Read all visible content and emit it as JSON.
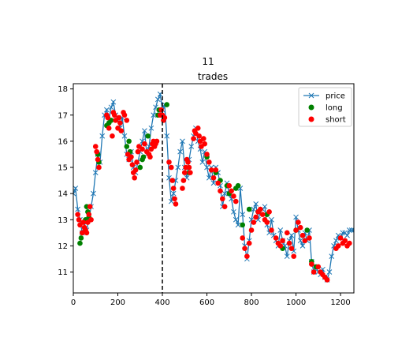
{
  "chart_data": {
    "type": "line",
    "suptitle": "11",
    "title": "trades",
    "xlabel": "",
    "ylabel": "",
    "xlim": [
      0,
      1260
    ],
    "ylim": [
      10.2,
      18.2
    ],
    "xticks": [
      0,
      200,
      400,
      600,
      800,
      1000,
      1200
    ],
    "yticks": [
      11,
      12,
      13,
      14,
      15,
      16,
      17,
      18
    ],
    "grid": false,
    "legend_position": "top-right",
    "vline": {
      "x": 400,
      "style": "dashed",
      "color": "#000000"
    },
    "colors": {
      "price": "#1f77b4",
      "long": "#008000",
      "short": "#ff0000"
    },
    "series": [
      {
        "name": "price",
        "marker": "x",
        "x": [
          0,
          10,
          20,
          30,
          40,
          50,
          60,
          70,
          80,
          90,
          100,
          110,
          120,
          130,
          140,
          150,
          160,
          170,
          180,
          190,
          200,
          210,
          220,
          230,
          240,
          250,
          260,
          270,
          280,
          290,
          300,
          310,
          320,
          330,
          340,
          350,
          360,
          370,
          380,
          390,
          400,
          410,
          420,
          430,
          440,
          450,
          460,
          470,
          480,
          490,
          500,
          510,
          520,
          530,
          540,
          550,
          560,
          570,
          580,
          590,
          600,
          610,
          620,
          630,
          640,
          650,
          660,
          670,
          680,
          690,
          700,
          710,
          720,
          730,
          740,
          750,
          760,
          770,
          780,
          790,
          800,
          810,
          820,
          830,
          840,
          850,
          860,
          870,
          880,
          890,
          900,
          910,
          920,
          930,
          940,
          950,
          960,
          970,
          980,
          990,
          1000,
          1010,
          1020,
          1030,
          1040,
          1050,
          1060,
          1070,
          1080,
          1090,
          1100,
          1110,
          1120,
          1130,
          1140,
          1150,
          1160,
          1170,
          1180,
          1190,
          1200,
          1210,
          1220,
          1230,
          1240,
          1250,
          1260
        ],
        "y": [
          14.0,
          14.2,
          13.4,
          13.0,
          12.5,
          12.8,
          12.6,
          13.0,
          13.5,
          14.0,
          14.8,
          15.5,
          15.2,
          16.2,
          17.0,
          17.2,
          16.8,
          17.3,
          17.5,
          17.0,
          16.8,
          16.5,
          16.9,
          16.2,
          15.5,
          15.3,
          15.6,
          15.0,
          14.8,
          15.2,
          15.6,
          16.0,
          16.4,
          15.5,
          15.8,
          16.5,
          17.0,
          17.3,
          17.6,
          17.8,
          17.2,
          17.4,
          16.2,
          14.6,
          13.7,
          14.0,
          14.5,
          15.0,
          15.6,
          16.0,
          15.0,
          14.6,
          15.3,
          15.8,
          16.2,
          16.5,
          16.0,
          15.7,
          15.2,
          15.6,
          15.0,
          14.6,
          15.0,
          14.4,
          15.0,
          14.8,
          14.3,
          13.5,
          14.0,
          14.4,
          14.0,
          13.8,
          13.3,
          13.0,
          12.8,
          14.2,
          13.2,
          12.0,
          11.5,
          12.2,
          13.0,
          13.4,
          13.6,
          13.0,
          13.3,
          13.4,
          13.5,
          12.8,
          12.5,
          13.0,
          12.4,
          12.2,
          12.0,
          12.6,
          12.2,
          12.0,
          11.6,
          12.2,
          12.4,
          11.8,
          13.1,
          12.6,
          12.2,
          12.0,
          12.5,
          12.2,
          12.6,
          11.4,
          11.0,
          11.2,
          11.0,
          10.9,
          11.1,
          10.8,
          10.7,
          11.0,
          11.6,
          12.0,
          12.2,
          12.4,
          12.3,
          12.5,
          12.5,
          12.4,
          12.6,
          12.6,
          12.6
        ]
      },
      {
        "name": "long",
        "marker": "o",
        "x": [
          30,
          35,
          40,
          55,
          60,
          65,
          70,
          110,
          115,
          150,
          160,
          170,
          240,
          250,
          255,
          300,
          310,
          315,
          335,
          380,
          385,
          420,
          520,
          600,
          640,
          660,
          690,
          700,
          730,
          740,
          760,
          790,
          830,
          870,
          940,
          1000,
          1050,
          1070,
          1090
        ],
        "y": [
          12.1,
          12.3,
          12.5,
          13.0,
          13.5,
          13.3,
          13.1,
          15.5,
          15.2,
          16.6,
          16.7,
          16.8,
          15.8,
          16.0,
          15.6,
          15.0,
          15.3,
          15.4,
          16.2,
          17.0,
          17.2,
          17.4,
          14.8,
          15.4,
          14.8,
          14.5,
          14.3,
          14.0,
          14.2,
          14.3,
          12.8,
          13.4,
          13.3,
          13.2,
          11.9,
          12.6,
          12.6,
          11.4,
          11.2
        ]
      },
      {
        "name": "short",
        "marker": "o",
        "x": [
          20,
          25,
          30,
          40,
          45,
          50,
          55,
          60,
          65,
          70,
          75,
          80,
          100,
          105,
          110,
          115,
          150,
          155,
          160,
          175,
          180,
          185,
          190,
          200,
          205,
          210,
          215,
          225,
          230,
          240,
          245,
          250,
          260,
          265,
          270,
          275,
          280,
          285,
          290,
          295,
          310,
          320,
          330,
          340,
          345,
          350,
          355,
          360,
          365,
          370,
          375,
          390,
          395,
          400,
          405,
          410,
          430,
          440,
          445,
          450,
          455,
          460,
          490,
          495,
          500,
          505,
          510,
          515,
          520,
          525,
          540,
          545,
          550,
          560,
          565,
          570,
          575,
          585,
          590,
          600,
          610,
          620,
          630,
          640,
          650,
          660,
          670,
          680,
          700,
          710,
          720,
          730,
          760,
          770,
          780,
          790,
          800,
          810,
          820,
          830,
          840,
          850,
          860,
          870,
          880,
          890,
          910,
          920,
          930,
          940,
          960,
          970,
          980,
          990,
          1000,
          1010,
          1020,
          1030,
          1040,
          1060,
          1070,
          1080,
          1100,
          1110,
          1120,
          1130,
          1140,
          1180,
          1190,
          1200,
          1210,
          1220,
          1230,
          1240
        ],
        "y": [
          13.2,
          13.0,
          12.8,
          12.5,
          12.9,
          12.7,
          12.6,
          12.5,
          12.9,
          13.2,
          13.5,
          13.0,
          15.8,
          15.6,
          15.3,
          15.0,
          17.0,
          16.9,
          16.5,
          16.2,
          17.1,
          17.0,
          16.8,
          16.5,
          16.9,
          16.7,
          16.4,
          17.1,
          17.0,
          16.8,
          15.5,
          15.3,
          15.4,
          15.1,
          14.8,
          14.6,
          14.9,
          15.2,
          15.6,
          15.8,
          15.7,
          15.9,
          15.6,
          15.5,
          15.4,
          15.7,
          15.9,
          16.0,
          15.8,
          15.9,
          16.0,
          17.0,
          17.2,
          17.0,
          16.8,
          16.9,
          15.2,
          15.0,
          14.5,
          14.2,
          13.8,
          13.6,
          14.2,
          14.5,
          14.8,
          15.0,
          15.3,
          15.2,
          15.0,
          14.8,
          16.1,
          16.4,
          16.3,
          16.5,
          16.2,
          16.0,
          15.8,
          16.1,
          15.9,
          15.5,
          15.2,
          14.9,
          14.6,
          14.9,
          14.4,
          14.1,
          13.8,
          13.5,
          14.3,
          14.1,
          13.9,
          13.7,
          12.3,
          11.9,
          11.6,
          12.1,
          12.6,
          12.9,
          13.1,
          13.3,
          13.4,
          13.2,
          13.0,
          12.9,
          13.3,
          12.6,
          12.3,
          12.1,
          12.0,
          12.2,
          12.5,
          12.1,
          11.9,
          11.6,
          12.6,
          12.9,
          12.7,
          12.4,
          12.2,
          12.3,
          11.3,
          11.0,
          11.2,
          11.0,
          10.9,
          10.8,
          10.7,
          11.9,
          12.0,
          12.3,
          12.1,
          12.2,
          12.0,
          12.1
        ]
      }
    ]
  }
}
